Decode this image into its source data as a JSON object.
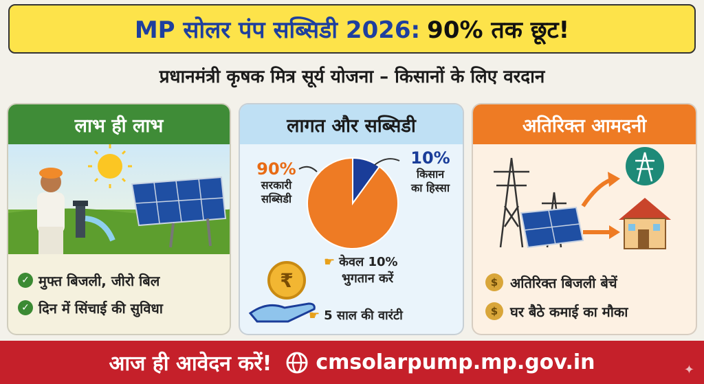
{
  "header": {
    "title_prefix": "MP सोलर पंप सब्सिडी 2026:",
    "title_suffix": "90% तक छूट!"
  },
  "subtitle": "प्रधानमंत्री कृषक मित्र सूर्य योजना – किसानों के लिए वरदान",
  "benefits_card": {
    "title": "लाभ ही लाभ",
    "items": [
      "मुफ्त बिजली, जीरो बिल",
      "दिन में सिंचाई की सुविधा"
    ]
  },
  "subsidy_card": {
    "title": "लागत और सब्सिडी",
    "govt_percent": "90%",
    "govt_label_1": "सरकारी",
    "govt_label_2": "सब्सिडी",
    "farmer_percent": "10%",
    "farmer_label_1": "किसान",
    "farmer_label_2": "का हिस्सा",
    "note_1_line_1": "केवल 10%",
    "note_1_line_2": "भुगतान करें",
    "note_2": "5 साल की वारंटी",
    "rupee_symbol": "₹"
  },
  "chart_data": {
    "type": "pie",
    "categories": [
      "सरकारी सब्सिडी",
      "किसान का हिस्सा"
    ],
    "values": [
      90,
      10
    ],
    "colors": [
      "#ee7b24",
      "#1a3d99"
    ]
  },
  "income_card": {
    "title": "अतिरिक्त आमदनी",
    "items": [
      "अतिरिक्त बिजली बेचें",
      "घर बैठे कमाई का मौका"
    ]
  },
  "footer": {
    "cta": "आज ही आवेदन करें!",
    "url": "cmsolarpump.mp.gov.in"
  },
  "colors": {
    "title_bg": "#fde34a",
    "green": "#3f8c37",
    "orange": "#ee7b24",
    "blue": "#1a3d99",
    "footer_red": "#c5202a"
  }
}
